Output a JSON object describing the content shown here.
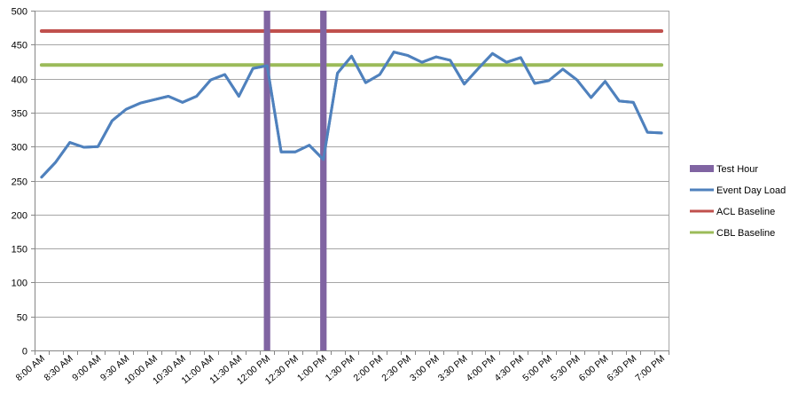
{
  "chart_data": {
    "type": "line",
    "title": "",
    "xlabel": "",
    "ylabel": "",
    "ylim": [
      0,
      500
    ],
    "yticks": [
      0,
      50,
      100,
      150,
      200,
      250,
      300,
      350,
      400,
      450,
      500
    ],
    "grid": true,
    "legend_position": "right",
    "x": [
      "8:00 AM",
      "8:15 AM",
      "8:30 AM",
      "8:45 AM",
      "9:00 AM",
      "9:15 AM",
      "9:30 AM",
      "9:45 AM",
      "10:00 AM",
      "10:15 AM",
      "10:30 AM",
      "10:45 AM",
      "11:00 AM",
      "11:15 AM",
      "11:30 AM",
      "11:45 AM",
      "12:00 PM",
      "12:15 PM",
      "12:30 PM",
      "12:45 PM",
      "1:00 PM",
      "1:15 PM",
      "1:30 PM",
      "1:45 PM",
      "2:00 PM",
      "2:15 PM",
      "2:30 PM",
      "2:45 PM",
      "3:00 PM",
      "3:15 PM",
      "3:30 PM",
      "3:45 PM",
      "4:00 PM",
      "4:15 PM",
      "4:30 PM",
      "4:45 PM",
      "5:00 PM",
      "5:15 PM",
      "5:30 PM",
      "5:45 PM",
      "6:00 PM",
      "6:15 PM",
      "6:30 PM",
      "6:45 PM",
      "7:00 PM"
    ],
    "x_tick_labels": [
      "8:00 AM",
      "8:30 AM",
      "9:00 AM",
      "9:30 AM",
      "10:00 AM",
      "10:30 AM",
      "11:00 AM",
      "11:30 AM",
      "12:00 PM",
      "12:30 PM",
      "1:00 PM",
      "1:30 PM",
      "2:00 PM",
      "2:30 PM",
      "3:00 PM",
      "3:30 PM",
      "4:00 PM",
      "4:30 PM",
      "5:00 PM",
      "5:30 PM",
      "6:00 PM",
      "6:30 PM",
      "7:00 PM"
    ],
    "series": [
      {
        "name": "Test Hour",
        "kind": "vertical-bar-markers",
        "color": "#8064A2",
        "positions": [
          "12:00 PM",
          "1:00 PM"
        ]
      },
      {
        "name": "Event Day Load",
        "color": "#4F81BD",
        "values": [
          255,
          277,
          306,
          299,
          300,
          338,
          355,
          364,
          369,
          374,
          365,
          374,
          398,
          406,
          374,
          415,
          419,
          292,
          292,
          302,
          281,
          408,
          433,
          394,
          406,
          439,
          434,
          424,
          432,
          427,
          392,
          415,
          437,
          424,
          431,
          393,
          397,
          414,
          398,
          372,
          396,
          367,
          365,
          321,
          320
        ]
      },
      {
        "name": "ACL Baseline",
        "color": "#C0504D",
        "values": [
          470,
          470,
          470,
          470,
          470,
          470,
          470,
          470,
          470,
          470,
          470,
          470,
          470,
          470,
          470,
          470,
          470,
          470,
          470,
          470,
          470,
          470,
          470,
          470,
          470,
          470,
          470,
          470,
          470,
          470,
          470,
          470,
          470,
          470,
          470,
          470,
          470,
          470,
          470,
          470,
          470,
          470,
          470,
          470,
          470
        ]
      },
      {
        "name": "CBL Baseline",
        "color": "#9BBB59",
        "values": [
          420,
          420,
          420,
          420,
          420,
          420,
          420,
          420,
          420,
          420,
          420,
          420,
          420,
          420,
          420,
          420,
          420,
          420,
          420,
          420,
          420,
          420,
          420,
          420,
          420,
          420,
          420,
          420,
          420,
          420,
          420,
          420,
          420,
          420,
          420,
          420,
          420,
          420,
          420,
          420,
          420,
          420,
          420,
          420,
          420
        ]
      }
    ]
  },
  "legend": {
    "items": [
      {
        "label": "Test Hour",
        "color": "#8064A2",
        "swatch": "box"
      },
      {
        "label": "Event Day Load",
        "color": "#4F81BD",
        "swatch": "line"
      },
      {
        "label": "ACL Baseline",
        "color": "#C0504D",
        "swatch": "line"
      },
      {
        "label": "CBL Baseline",
        "color": "#9BBB59",
        "swatch": "line"
      }
    ]
  },
  "style": {
    "grid_color": "#A6A6A6",
    "axis_color": "#868686"
  }
}
